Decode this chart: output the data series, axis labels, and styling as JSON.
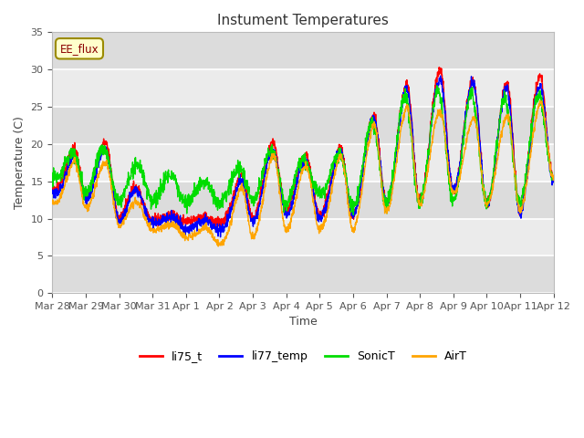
{
  "title": "Instument Temperatures",
  "xlabel": "Time",
  "ylabel": "Temperature (C)",
  "ylim": [
    0,
    35
  ],
  "annotation_text": "EE_flux",
  "annotation_color": "#8B0000",
  "annotation_bg": "#FFFFCC",
  "annotation_border": "#9B8B00",
  "bg_color": "#EBEBEB",
  "band_color": "#DCDCDC",
  "grid_color": "white",
  "line_colors": {
    "li75_t": "red",
    "li77_temp": "blue",
    "SonicT": "#00DD00",
    "AirT": "orange"
  },
  "xtick_labels": [
    "Mar 28",
    "Mar 29",
    "Mar 30",
    "Mar 31",
    "Apr 1",
    "Apr 2",
    "Apr 3",
    "Apr 4",
    "Apr 5",
    "Apr 6",
    "Apr 7",
    "Apr 8",
    "Apr 9",
    "Apr 10",
    "Apr 11",
    "Apr 12"
  ]
}
